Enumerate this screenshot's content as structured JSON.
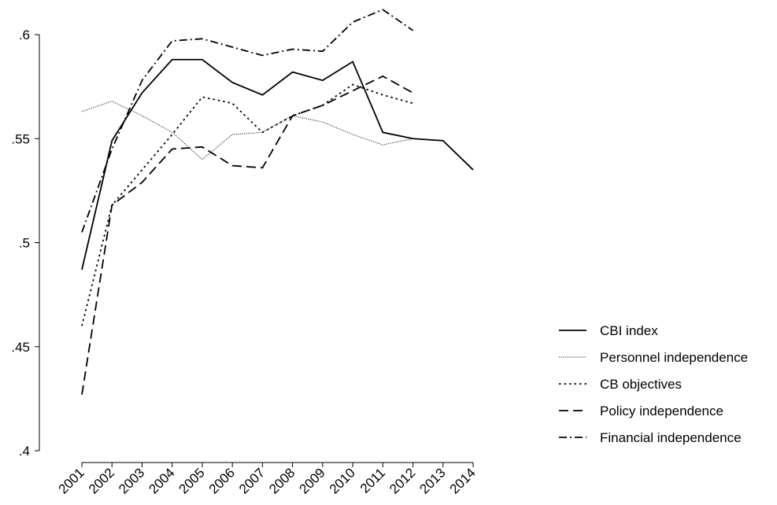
{
  "chart_data": {
    "type": "line",
    "x": [
      2001,
      2002,
      2003,
      2004,
      2005,
      2006,
      2007,
      2008,
      2009,
      2010,
      2011,
      2012,
      2013,
      2014
    ],
    "xlim": [
      2001,
      2014
    ],
    "xticks": [
      2001,
      2002,
      2003,
      2004,
      2005,
      2006,
      2007,
      2008,
      2009,
      2010,
      2011,
      2012,
      2013,
      2014
    ],
    "ylim": [
      0.4,
      0.6
    ],
    "yticks": [
      {
        "value": 0.4,
        "label": ".4"
      },
      {
        "value": 0.45,
        "label": ".45"
      },
      {
        "value": 0.5,
        "label": ".5"
      },
      {
        "value": 0.55,
        "label": ".55"
      },
      {
        "value": 0.6,
        "label": ".6"
      }
    ],
    "legend": "right",
    "series": [
      {
        "name": "CBI index",
        "color": "#000000",
        "dash": "solid",
        "values": [
          0.487,
          0.549,
          0.572,
          0.588,
          0.588,
          0.577,
          0.571,
          0.582,
          0.578,
          0.587,
          0.553,
          0.55,
          0.549,
          0.535
        ]
      },
      {
        "name": "Personnel independence",
        "color": "#000000",
        "dash": "fine",
        "values": [
          0.563,
          0.568,
          0.561,
          0.553,
          0.54,
          0.552,
          0.553,
          0.561,
          0.558,
          0.552,
          0.547,
          0.55,
          null,
          null
        ]
      },
      {
        "name": "CB objectives",
        "color": "#000000",
        "dash": "dot",
        "values": [
          0.46,
          0.518,
          0.535,
          0.552,
          0.57,
          0.567,
          0.553,
          0.561,
          0.566,
          0.576,
          0.571,
          0.567,
          null,
          null
        ]
      },
      {
        "name": "Policy independence",
        "color": "#000000",
        "dash": "dash",
        "values": [
          0.427,
          0.518,
          0.529,
          0.545,
          0.546,
          0.537,
          0.536,
          0.561,
          0.566,
          0.573,
          0.58,
          0.572,
          null,
          null
        ]
      },
      {
        "name": "Financial independence",
        "color": "#000000",
        "dash": "dashdot",
        "values": [
          0.505,
          0.545,
          0.578,
          0.597,
          0.598,
          0.594,
          0.59,
          0.593,
          0.592,
          0.606,
          0.612,
          0.602,
          null,
          null
        ]
      }
    ]
  }
}
